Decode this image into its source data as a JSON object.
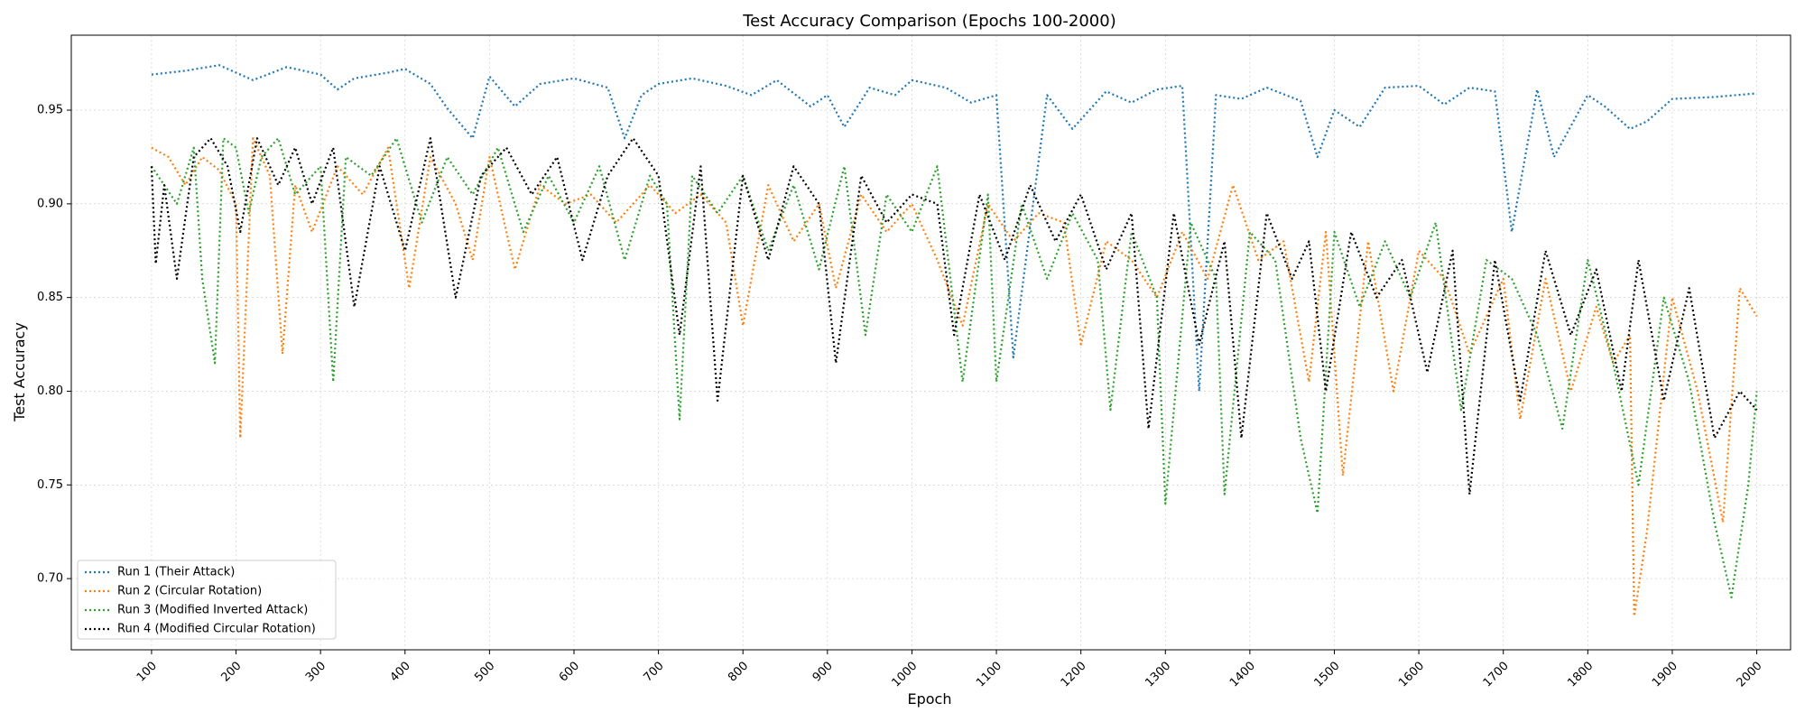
{
  "chart_data": {
    "type": "line",
    "title": "Test Accuracy Comparison (Epochs 100-2000)",
    "xlabel": "Epoch",
    "ylabel": "Test Accuracy",
    "xlim": [
      5,
      2040
    ],
    "ylim": [
      0.662,
      0.99
    ],
    "xticks": [
      100,
      200,
      300,
      400,
      500,
      600,
      700,
      800,
      900,
      1000,
      1100,
      1200,
      1300,
      1400,
      1500,
      1600,
      1700,
      1800,
      1900,
      2000
    ],
    "xtick_labels": [
      "100",
      "200",
      "300",
      "400",
      "500",
      "600",
      "700",
      "800",
      "900",
      "1000",
      "1100",
      "1200",
      "1300",
      "1400",
      "1500",
      "1600",
      "1700",
      "1800",
      "1900",
      "2000"
    ],
    "yticks": [
      0.7,
      0.75,
      0.8,
      0.85,
      0.9,
      0.95
    ],
    "ytick_labels": [
      "0.70",
      "0.75",
      "0.80",
      "0.85",
      "0.90",
      "0.95"
    ],
    "grid": true,
    "legend_position": "lower-left",
    "line_style": "dotted",
    "series": [
      {
        "name": "Run 1 (Their Attack)",
        "color": "#1f77b4",
        "x": [
          100,
          140,
          180,
          220,
          260,
          300,
          320,
          340,
          380,
          400,
          430,
          450,
          480,
          500,
          530,
          560,
          600,
          640,
          660,
          680,
          700,
          740,
          780,
          810,
          840,
          880,
          900,
          920,
          950,
          980,
          1000,
          1040,
          1070,
          1100,
          1120,
          1160,
          1190,
          1230,
          1260,
          1290,
          1320,
          1340,
          1360,
          1390,
          1420,
          1460,
          1480,
          1500,
          1530,
          1560,
          1600,
          1630,
          1660,
          1690,
          1710,
          1740,
          1760,
          1800,
          1820,
          1850,
          1870,
          1900,
          1950,
          2000
        ],
        "values": [
          0.969,
          0.971,
          0.974,
          0.966,
          0.973,
          0.969,
          0.961,
          0.967,
          0.97,
          0.972,
          0.964,
          0.951,
          0.935,
          0.968,
          0.952,
          0.964,
          0.967,
          0.962,
          0.935,
          0.958,
          0.964,
          0.967,
          0.963,
          0.958,
          0.966,
          0.952,
          0.958,
          0.941,
          0.962,
          0.958,
          0.966,
          0.962,
          0.954,
          0.958,
          0.818,
          0.958,
          0.94,
          0.96,
          0.954,
          0.961,
          0.963,
          0.8,
          0.958,
          0.956,
          0.962,
          0.955,
          0.925,
          0.95,
          0.941,
          0.962,
          0.963,
          0.953,
          0.962,
          0.96,
          0.885,
          0.961,
          0.925,
          0.958,
          0.952,
          0.94,
          0.944,
          0.956,
          0.957,
          0.959
        ]
      },
      {
        "name": "Run 2 (Circular Rotation)",
        "color": "#ff7f0e",
        "x": [
          100,
          120,
          140,
          160,
          180,
          200,
          205,
          220,
          240,
          255,
          270,
          290,
          320,
          350,
          380,
          405,
          430,
          460,
          480,
          500,
          530,
          560,
          590,
          620,
          650,
          690,
          720,
          750,
          780,
          800,
          830,
          860,
          890,
          910,
          940,
          970,
          1000,
          1030,
          1060,
          1090,
          1120,
          1150,
          1180,
          1200,
          1230,
          1260,
          1290,
          1320,
          1350,
          1380,
          1410,
          1440,
          1470,
          1490,
          1510,
          1540,
          1570,
          1600,
          1630,
          1660,
          1700,
          1720,
          1750,
          1780,
          1810,
          1830,
          1850,
          1855,
          1870,
          1900,
          1930,
          1960,
          1980,
          2000
        ],
        "values": [
          0.93,
          0.925,
          0.91,
          0.925,
          0.918,
          0.9,
          0.775,
          0.935,
          0.915,
          0.82,
          0.91,
          0.885,
          0.92,
          0.905,
          0.93,
          0.855,
          0.925,
          0.9,
          0.87,
          0.925,
          0.865,
          0.91,
          0.9,
          0.905,
          0.89,
          0.91,
          0.895,
          0.905,
          0.89,
          0.835,
          0.91,
          0.88,
          0.9,
          0.855,
          0.905,
          0.885,
          0.9,
          0.87,
          0.835,
          0.9,
          0.88,
          0.895,
          0.89,
          0.825,
          0.88,
          0.87,
          0.85,
          0.885,
          0.86,
          0.91,
          0.87,
          0.88,
          0.805,
          0.885,
          0.755,
          0.88,
          0.8,
          0.875,
          0.86,
          0.82,
          0.86,
          0.785,
          0.86,
          0.8,
          0.845,
          0.815,
          0.83,
          0.68,
          0.725,
          0.85,
          0.8,
          0.73,
          0.855,
          0.84
        ]
      },
      {
        "name": "Run 3 (Modified Inverted Attack)",
        "color": "#2ca02c",
        "x": [
          100,
          130,
          150,
          160,
          175,
          185,
          200,
          215,
          230,
          250,
          270,
          300,
          315,
          330,
          360,
          390,
          420,
          450,
          480,
          510,
          540,
          570,
          600,
          630,
          660,
          690,
          710,
          725,
          740,
          770,
          800,
          830,
          860,
          890,
          920,
          945,
          970,
          1000,
          1030,
          1060,
          1090,
          1100,
          1130,
          1160,
          1190,
          1220,
          1235,
          1260,
          1290,
          1300,
          1330,
          1360,
          1370,
          1400,
          1430,
          1460,
          1480,
          1500,
          1530,
          1560,
          1590,
          1620,
          1650,
          1680,
          1710,
          1740,
          1770,
          1800,
          1830,
          1860,
          1890,
          1920,
          1950,
          1970,
          1990,
          2000
        ],
        "values": [
          0.92,
          0.9,
          0.93,
          0.86,
          0.815,
          0.935,
          0.93,
          0.895,
          0.925,
          0.935,
          0.905,
          0.92,
          0.805,
          0.925,
          0.915,
          0.935,
          0.89,
          0.925,
          0.905,
          0.93,
          0.885,
          0.915,
          0.89,
          0.92,
          0.87,
          0.915,
          0.9,
          0.785,
          0.915,
          0.895,
          0.915,
          0.875,
          0.91,
          0.865,
          0.92,
          0.83,
          0.905,
          0.885,
          0.92,
          0.805,
          0.905,
          0.805,
          0.9,
          0.86,
          0.895,
          0.87,
          0.79,
          0.885,
          0.85,
          0.74,
          0.89,
          0.86,
          0.745,
          0.885,
          0.87,
          0.775,
          0.735,
          0.885,
          0.845,
          0.88,
          0.85,
          0.89,
          0.79,
          0.87,
          0.86,
          0.83,
          0.78,
          0.87,
          0.815,
          0.75,
          0.85,
          0.805,
          0.73,
          0.69,
          0.75,
          0.8
        ]
      },
      {
        "name": "Run 4 (Modified Circular Rotation)",
        "color": "#000000",
        "x": [
          100,
          105,
          115,
          130,
          150,
          170,
          190,
          205,
          225,
          250,
          270,
          290,
          315,
          340,
          370,
          400,
          430,
          460,
          490,
          520,
          550,
          580,
          610,
          640,
          670,
          700,
          725,
          750,
          770,
          800,
          830,
          860,
          890,
          910,
          940,
          970,
          1000,
          1030,
          1050,
          1080,
          1110,
          1140,
          1170,
          1200,
          1230,
          1260,
          1280,
          1310,
          1340,
          1370,
          1390,
          1420,
          1450,
          1470,
          1490,
          1520,
          1550,
          1580,
          1610,
          1640,
          1660,
          1690,
          1720,
          1750,
          1780,
          1810,
          1840,
          1860,
          1890,
          1920,
          1950,
          1980,
          2000
        ],
        "values": [
          0.92,
          0.868,
          0.91,
          0.86,
          0.925,
          0.935,
          0.92,
          0.885,
          0.935,
          0.91,
          0.93,
          0.9,
          0.93,
          0.845,
          0.92,
          0.875,
          0.935,
          0.85,
          0.915,
          0.93,
          0.905,
          0.925,
          0.87,
          0.915,
          0.935,
          0.915,
          0.83,
          0.92,
          0.795,
          0.915,
          0.87,
          0.92,
          0.9,
          0.815,
          0.915,
          0.89,
          0.905,
          0.9,
          0.83,
          0.905,
          0.87,
          0.91,
          0.88,
          0.905,
          0.865,
          0.895,
          0.78,
          0.895,
          0.825,
          0.88,
          0.775,
          0.895,
          0.86,
          0.88,
          0.8,
          0.885,
          0.85,
          0.87,
          0.81,
          0.875,
          0.745,
          0.87,
          0.795,
          0.875,
          0.83,
          0.865,
          0.8,
          0.87,
          0.795,
          0.855,
          0.775,
          0.8,
          0.79
        ]
      }
    ]
  }
}
